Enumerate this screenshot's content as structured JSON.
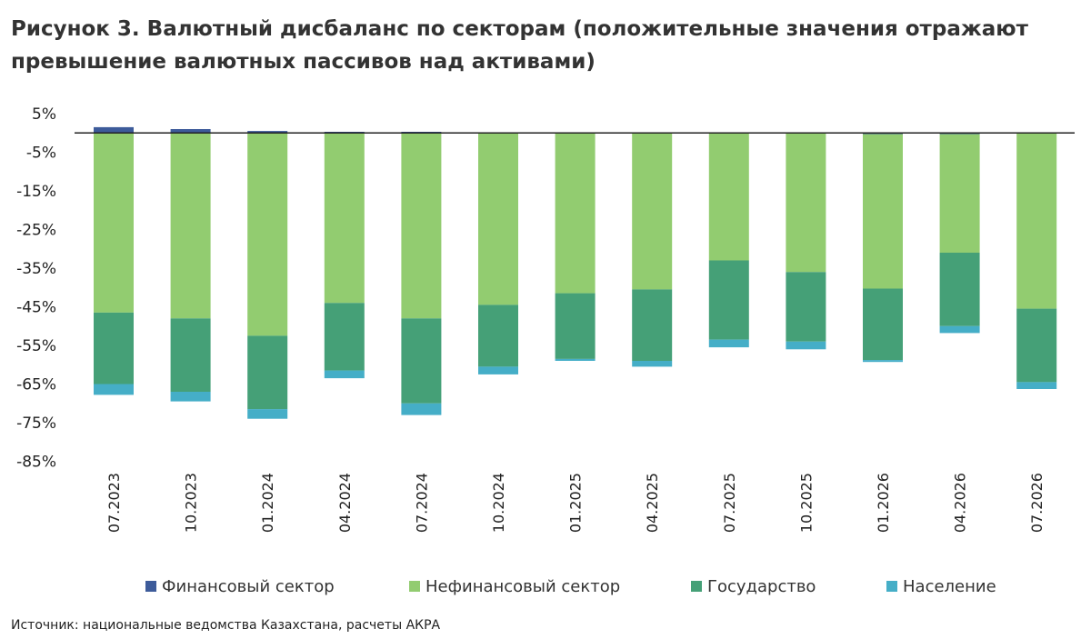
{
  "title": "Рисунок 3. Валютный дисбаланс по секторам (положительные значения отражают превышение валютных пассивов над активами)",
  "source": "Источник: национальные ведомства Казахстана, расчеты АКРА",
  "colors": {
    "financial": "#3d5b9a",
    "nonfinancial": "#92cc70",
    "government": "#45a077",
    "households": "#45aec7",
    "axis": "#222222"
  },
  "chart_data": {
    "type": "bar",
    "stacked": true,
    "categories": [
      "07.2023",
      "10.2023",
      "01.2024",
      "04.2024",
      "07.2024",
      "10.2024",
      "01.2025",
      "04.2025",
      "07.2025",
      "10.2025",
      "01.2026",
      "04.2026",
      "07.2026"
    ],
    "series": [
      {
        "name": "Финансовый сектор",
        "color_key": "financial",
        "values": [
          1.5,
          1.0,
          0.5,
          0.3,
          0.3,
          0,
          0,
          0,
          0,
          0,
          -0.3,
          -0.3,
          0
        ]
      },
      {
        "name": "Нефинансовый сектор",
        "color_key": "nonfinancial",
        "values": [
          -46.5,
          -48.0,
          -52.5,
          -44.0,
          -48.0,
          -44.5,
          -41.5,
          -40.5,
          -33.0,
          -36.0,
          -40.0,
          -30.7,
          -45.5
        ]
      },
      {
        "name": "Государство",
        "color_key": "government",
        "values": [
          -18.5,
          -19.0,
          -19.0,
          -17.5,
          -22.0,
          -16.0,
          -17.0,
          -18.5,
          -20.5,
          -18.0,
          -18.5,
          -19.0,
          -19.0
        ]
      },
      {
        "name": "Население",
        "color_key": "households",
        "values": [
          -2.8,
          -2.5,
          -2.5,
          -2.0,
          -3.0,
          -2.0,
          -0.5,
          -1.5,
          -2.0,
          -2.0,
          -0.5,
          -1.8,
          -1.8
        ]
      }
    ],
    "yticks": [
      "5%",
      "-5%",
      "-15%",
      "-25%",
      "-35%",
      "-45%",
      "-55%",
      "-65%",
      "-75%",
      "-85%"
    ],
    "ylim": [
      -85,
      5
    ],
    "xlabel": "",
    "ylabel": "",
    "grid": false,
    "legend_position": "bottom"
  }
}
